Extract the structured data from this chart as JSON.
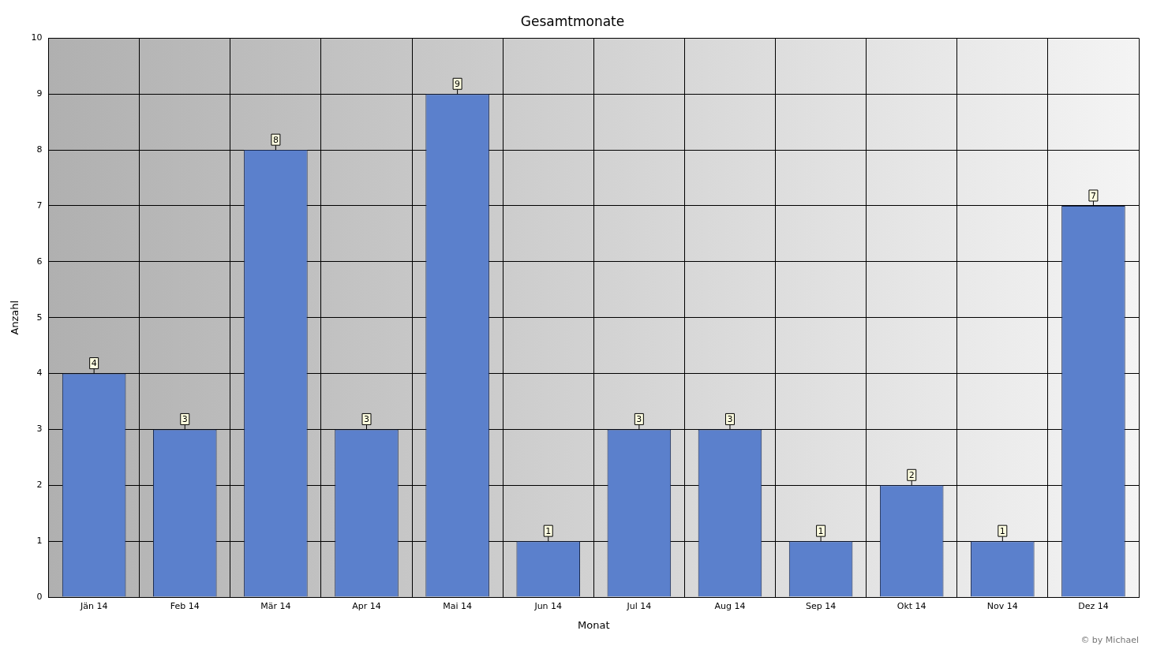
{
  "chart_data": {
    "type": "bar",
    "title": "Gesamtmonate",
    "xlabel": "Monat",
    "ylabel": "Anzahl",
    "categories": [
      "Jän 14",
      "Feb 14",
      "Mär 14",
      "Apr 14",
      "Mai 14",
      "Jun 14",
      "Jul 14",
      "Aug 14",
      "Sep 14",
      "Okt 14",
      "Nov 14",
      "Dez 14"
    ],
    "values": [
      4,
      3,
      8,
      3,
      9,
      1,
      3,
      3,
      1,
      2,
      1,
      7
    ],
    "color": "#5b80cc",
    "ylim": [
      0,
      10
    ],
    "yticks": [
      0,
      1,
      2,
      3,
      4,
      5,
      6,
      7,
      8,
      9,
      10
    ],
    "grid": true,
    "data_labels": true,
    "legend": false,
    "annotations": [
      "© by Michael"
    ]
  }
}
